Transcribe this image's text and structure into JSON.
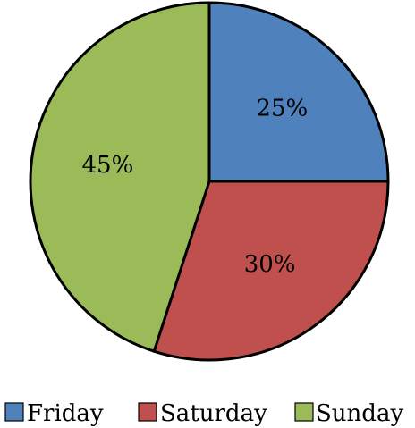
{
  "chart_data": {
    "type": "pie",
    "title": "",
    "categories": [
      "Friday",
      "Saturday",
      "Sunday"
    ],
    "values": [
      25,
      30,
      45
    ],
    "labels": [
      "25%",
      "30%",
      "45%"
    ],
    "colors": [
      "#4F81BD",
      "#C0504D",
      "#9BBB59"
    ],
    "legend": {
      "placement": "bottom",
      "items": [
        {
          "label": "Friday",
          "color": "#4F81BD"
        },
        {
          "label": "Saturday",
          "color": "#C0504D"
        },
        {
          "label": "Sunday",
          "color": "#9BBB59"
        }
      ]
    }
  }
}
